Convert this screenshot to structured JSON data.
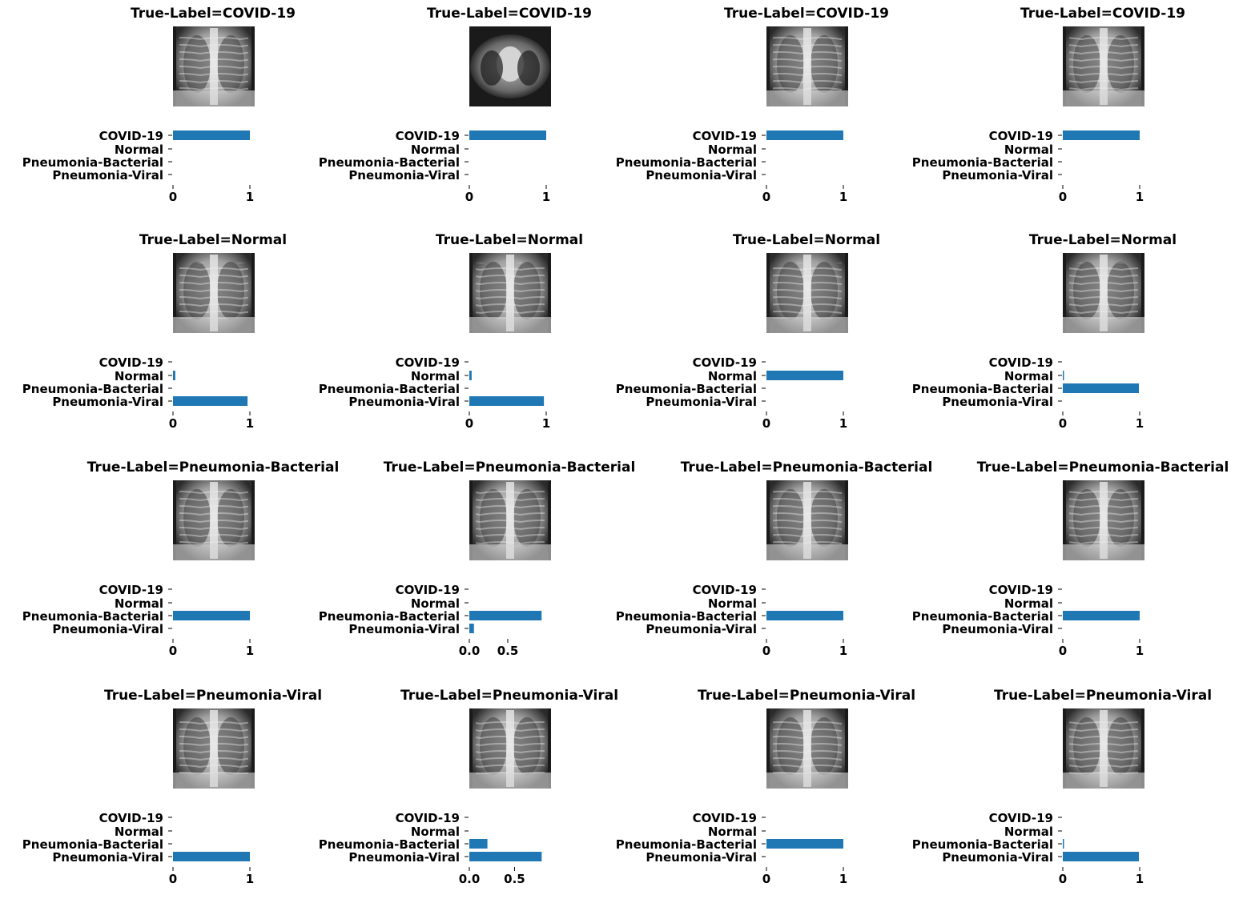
{
  "colors": {
    "bar": "#1f77b4",
    "text": "#000000"
  },
  "chart_data": [
    {
      "type": "bar",
      "orientation": "horizontal",
      "title": "True-Label=COVID-19",
      "categories": [
        "COVID-19",
        "Normal",
        "Pneumonia-Bacterial",
        "Pneumonia-Viral"
      ],
      "values": [
        1.0,
        0.0,
        0.0,
        0.0
      ],
      "xlim": [
        0,
        1
      ],
      "xticks": [
        0,
        1
      ],
      "xtick_labels": [
        "0",
        "1"
      ]
    },
    {
      "type": "bar",
      "orientation": "horizontal",
      "title": "True-Label=COVID-19",
      "categories": [
        "COVID-19",
        "Normal",
        "Pneumonia-Bacterial",
        "Pneumonia-Viral"
      ],
      "values": [
        1.0,
        0.0,
        0.0,
        0.0
      ],
      "xlim": [
        0,
        1
      ],
      "xticks": [
        0,
        1
      ],
      "xtick_labels": [
        "0",
        "1"
      ]
    },
    {
      "type": "bar",
      "orientation": "horizontal",
      "title": "True-Label=COVID-19",
      "categories": [
        "COVID-19",
        "Normal",
        "Pneumonia-Bacterial",
        "Pneumonia-Viral"
      ],
      "values": [
        1.0,
        0.0,
        0.0,
        0.0
      ],
      "xlim": [
        0,
        1
      ],
      "xticks": [
        0,
        1
      ],
      "xtick_labels": [
        "0",
        "1"
      ]
    },
    {
      "type": "bar",
      "orientation": "horizontal",
      "title": "True-Label=COVID-19",
      "categories": [
        "COVID-19",
        "Normal",
        "Pneumonia-Bacterial",
        "Pneumonia-Viral"
      ],
      "values": [
        1.0,
        0.0,
        0.0,
        0.0
      ],
      "xlim": [
        0,
        1
      ],
      "xticks": [
        0,
        1
      ],
      "xtick_labels": [
        "0",
        "1"
      ]
    },
    {
      "type": "bar",
      "orientation": "horizontal",
      "title": "True-Label=Normal",
      "categories": [
        "COVID-19",
        "Normal",
        "Pneumonia-Bacterial",
        "Pneumonia-Viral"
      ],
      "values": [
        0.0,
        0.03,
        0.0,
        0.97
      ],
      "xlim": [
        0,
        1
      ],
      "xticks": [
        0,
        1
      ],
      "xtick_labels": [
        "0",
        "1"
      ]
    },
    {
      "type": "bar",
      "orientation": "horizontal",
      "title": "True-Label=Normal",
      "categories": [
        "COVID-19",
        "Normal",
        "Pneumonia-Bacterial",
        "Pneumonia-Viral"
      ],
      "values": [
        0.0,
        0.03,
        0.0,
        0.97
      ],
      "xlim": [
        0,
        1
      ],
      "xticks": [
        0,
        1
      ],
      "xtick_labels": [
        "0",
        "1"
      ]
    },
    {
      "type": "bar",
      "orientation": "horizontal",
      "title": "True-Label=Normal",
      "categories": [
        "COVID-19",
        "Normal",
        "Pneumonia-Bacterial",
        "Pneumonia-Viral"
      ],
      "values": [
        0.0,
        1.0,
        0.0,
        0.0
      ],
      "xlim": [
        0,
        1
      ],
      "xticks": [
        0,
        1
      ],
      "xtick_labels": [
        "0",
        "1"
      ]
    },
    {
      "type": "bar",
      "orientation": "horizontal",
      "title": "True-Label=Normal",
      "categories": [
        "COVID-19",
        "Normal",
        "Pneumonia-Bacterial",
        "Pneumonia-Viral"
      ],
      "values": [
        0.0,
        0.01,
        0.99,
        0.0
      ],
      "xlim": [
        0,
        1
      ],
      "xticks": [
        0,
        1
      ],
      "xtick_labels": [
        "0",
        "1"
      ]
    },
    {
      "type": "bar",
      "orientation": "horizontal",
      "title": "True-Label=Pneumonia-Bacterial",
      "categories": [
        "COVID-19",
        "Normal",
        "Pneumonia-Bacterial",
        "Pneumonia-Viral"
      ],
      "values": [
        0.0,
        0.0,
        1.0,
        0.0
      ],
      "xlim": [
        0,
        1
      ],
      "xticks": [
        0,
        1
      ],
      "xtick_labels": [
        "0",
        "1"
      ]
    },
    {
      "type": "bar",
      "orientation": "horizontal",
      "title": "True-Label=Pneumonia-Bacterial",
      "categories": [
        "COVID-19",
        "Normal",
        "Pneumonia-Bacterial",
        "Pneumonia-Viral"
      ],
      "values": [
        0.0,
        0.0,
        0.94,
        0.06
      ],
      "xlim": [
        0,
        1
      ],
      "xticks": [
        0,
        0.5
      ],
      "xtick_labels": [
        "0.0",
        "0.5"
      ]
    },
    {
      "type": "bar",
      "orientation": "horizontal",
      "title": "True-Label=Pneumonia-Bacterial",
      "categories": [
        "COVID-19",
        "Normal",
        "Pneumonia-Bacterial",
        "Pneumonia-Viral"
      ],
      "values": [
        0.0,
        0.0,
        1.0,
        0.0
      ],
      "xlim": [
        0,
        1
      ],
      "xticks": [
        0,
        1
      ],
      "xtick_labels": [
        "0",
        "1"
      ]
    },
    {
      "type": "bar",
      "orientation": "horizontal",
      "title": "True-Label=Pneumonia-Bacterial",
      "categories": [
        "COVID-19",
        "Normal",
        "Pneumonia-Bacterial",
        "Pneumonia-Viral"
      ],
      "values": [
        0.0,
        0.0,
        1.0,
        0.0
      ],
      "xlim": [
        0,
        1
      ],
      "xticks": [
        0,
        1
      ],
      "xtick_labels": [
        "0",
        "1"
      ]
    },
    {
      "type": "bar",
      "orientation": "horizontal",
      "title": "True-Label=Pneumonia-Viral",
      "categories": [
        "COVID-19",
        "Normal",
        "Pneumonia-Bacterial",
        "Pneumonia-Viral"
      ],
      "values": [
        0.0,
        0.0,
        0.0,
        1.0
      ],
      "xlim": [
        0,
        1
      ],
      "xticks": [
        0,
        1
      ],
      "xtick_labels": [
        "0",
        "1"
      ]
    },
    {
      "type": "bar",
      "orientation": "horizontal",
      "title": "True-Label=Pneumonia-Viral",
      "categories": [
        "COVID-19",
        "Normal",
        "Pneumonia-Bacterial",
        "Pneumonia-Viral"
      ],
      "values": [
        0.0,
        0.0,
        0.2,
        0.8
      ],
      "xlim": [
        0,
        0.85
      ],
      "xticks": [
        0,
        0.5
      ],
      "xtick_labels": [
        "0.0",
        "0.5"
      ]
    },
    {
      "type": "bar",
      "orientation": "horizontal",
      "title": "True-Label=Pneumonia-Viral",
      "categories": [
        "COVID-19",
        "Normal",
        "Pneumonia-Bacterial",
        "Pneumonia-Viral"
      ],
      "values": [
        0.0,
        0.0,
        1.0,
        0.0
      ],
      "xlim": [
        0,
        1
      ],
      "xticks": [
        0,
        1
      ],
      "xtick_labels": [
        "0",
        "1"
      ]
    },
    {
      "type": "bar",
      "orientation": "horizontal",
      "title": "True-Label=Pneumonia-Viral",
      "categories": [
        "COVID-19",
        "Normal",
        "Pneumonia-Bacterial",
        "Pneumonia-Viral"
      ],
      "values": [
        0.0,
        0.0,
        0.01,
        0.99
      ],
      "xlim": [
        0,
        1
      ],
      "xticks": [
        0,
        1
      ],
      "xtick_labels": [
        "0",
        "1"
      ]
    }
  ]
}
